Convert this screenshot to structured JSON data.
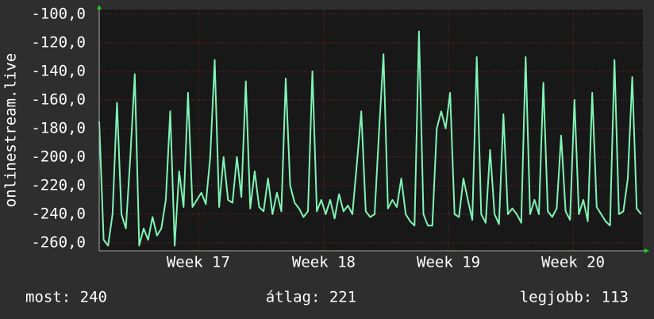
{
  "chart_data": {
    "type": "line",
    "y_label": "onlinestream.live",
    "color": "#7ff5b5",
    "grid": true,
    "xlim": [
      0,
      30.6
    ],
    "xticks": [
      {
        "value": 5.58,
        "label": "Week 17"
      },
      {
        "value": 12.64,
        "label": "Week 18"
      },
      {
        "value": 19.66,
        "label": "Week 19"
      },
      {
        "value": 26.67,
        "label": "Week 20"
      }
    ],
    "ylim": [
      -265.6,
      -96.7
    ],
    "yticks": [
      {
        "value": -100,
        "label": "-100,0"
      },
      {
        "value": -120,
        "label": "-120,0"
      },
      {
        "value": -140,
        "label": "-140,0"
      },
      {
        "value": -160,
        "label": "-160,0"
      },
      {
        "value": -180,
        "label": "-180,0"
      },
      {
        "value": -200,
        "label": "-200,0"
      },
      {
        "value": -220,
        "label": "-220,0"
      },
      {
        "value": -240,
        "label": "-240,0"
      },
      {
        "value": -260,
        "label": "-260,0"
      }
    ],
    "x": [
      0,
      0.25,
      0.5,
      0.75,
      1,
      1.25,
      1.5,
      1.75,
      2,
      2.25,
      2.5,
      2.75,
      3,
      3.25,
      3.5,
      3.75,
      4,
      4.25,
      4.5,
      4.75,
      5,
      5.25,
      5.5,
      5.75,
      6,
      6.25,
      6.5,
      6.75,
      7,
      7.25,
      7.5,
      7.75,
      8,
      8.25,
      8.5,
      8.75,
      9,
      9.25,
      9.5,
      9.75,
      10,
      10.25,
      10.5,
      10.75,
      11,
      11.25,
      11.5,
      11.75,
      12,
      12.25,
      12.5,
      12.75,
      13,
      13.25,
      13.5,
      13.75,
      14,
      14.25,
      14.5,
      14.75,
      15,
      15.25,
      15.5,
      15.75,
      16,
      16.25,
      16.5,
      16.75,
      17,
      17.25,
      17.5,
      17.75,
      18,
      18.25,
      18.5,
      18.75,
      19,
      19.25,
      19.5,
      19.75,
      20,
      20.25,
      20.5,
      20.75,
      21,
      21.25,
      21.5,
      21.75,
      22,
      22.25,
      22.5,
      22.75,
      23,
      23.25,
      23.5,
      23.75,
      24,
      24.25,
      24.5,
      24.75,
      25,
      25.25,
      25.5,
      25.75,
      26,
      26.25,
      26.5,
      26.75,
      27,
      27.25,
      27.5,
      27.75,
      28,
      28.25,
      28.5,
      28.75,
      29,
      29.25,
      29.5,
      29.75,
      30,
      30.25,
      30.5
    ],
    "values": [
      -175,
      -258,
      -262,
      -240,
      -162,
      -240,
      -250,
      -200,
      -142,
      -262,
      -250,
      -258,
      -242,
      -255,
      -250,
      -230,
      -168,
      -262,
      -210,
      -235,
      -155,
      -235,
      -230,
      -225,
      -233,
      -200,
      -132,
      -235,
      -200,
      -230,
      -232,
      -200,
      -228,
      -147,
      -236,
      -210,
      -235,
      -238,
      -215,
      -240,
      -225,
      -238,
      -145,
      -220,
      -232,
      -236,
      -242,
      -238,
      -140,
      -238,
      -230,
      -240,
      -230,
      -243,
      -226,
      -238,
      -234,
      -240,
      -205,
      -168,
      -238,
      -242,
      -240,
      -182,
      -128,
      -236,
      -230,
      -235,
      -215,
      -240,
      -245,
      -248,
      -112,
      -240,
      -248,
      -248,
      -180,
      -168,
      -180,
      -155,
      -240,
      -242,
      -215,
      -230,
      -244,
      -130,
      -240,
      -246,
      -195,
      -240,
      -247,
      -170,
      -240,
      -236,
      -240,
      -246,
      -130,
      -240,
      -230,
      -240,
      -148,
      -238,
      -242,
      -236,
      -185,
      -238,
      -244,
      -160,
      -240,
      -230,
      -245,
      -155,
      -235,
      -240,
      -245,
      -248,
      -132,
      -240,
      -238,
      -215,
      -144,
      -236,
      -240
    ],
    "footer": [
      "most: 240",
      "átlag: 221",
      "legjobb: 113"
    ]
  }
}
